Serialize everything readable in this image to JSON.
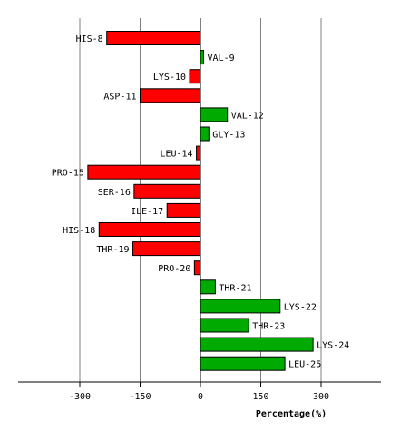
{
  "chart_data": {
    "type": "bar",
    "orientation": "horizontal",
    "title": "",
    "xlabel": "Percentage(%)",
    "ylabel": "",
    "xlim": [
      -450,
      450
    ],
    "xticks": [
      -300,
      -150,
      0,
      150,
      300
    ],
    "xtick_labels": [
      "-300",
      "-150",
      "0",
      "150",
      "300"
    ],
    "grid": true,
    "legend": "none",
    "categories": [
      "HIS-8",
      "VAL-9",
      "LYS-10",
      "ASP-11",
      "VAL-12",
      "GLY-13",
      "LEU-14",
      "PRO-15",
      "SER-16",
      "ILE-17",
      "HIS-18",
      "THR-19",
      "PRO-20",
      "THR-21",
      "LYS-22",
      "THR-23",
      "LYS-24",
      "LEU-25"
    ],
    "values": [
      -233,
      8,
      -27,
      -150,
      67,
      21,
      -10,
      -280,
      -165,
      -83,
      -252,
      -168,
      -15,
      37,
      198,
      120,
      280,
      210
    ],
    "colors": {
      "positive": "#00aa00",
      "negative": "#ff0000",
      "bar_stroke": "#000000",
      "grid": "#808080",
      "axis": "#000000"
    }
  }
}
